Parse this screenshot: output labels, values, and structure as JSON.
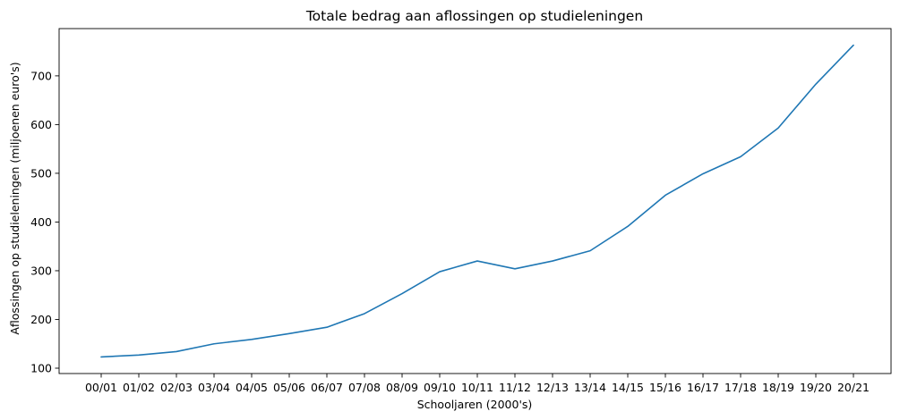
{
  "chart_data": {
    "type": "line",
    "title": "Totale bedrag aan aflossingen op studieleningen",
    "xlabel": "Schooljaren (2000's)",
    "ylabel": "Aflossingen op studieleningen (miljoenen euro's)",
    "categories": [
      "00/01",
      "01/02",
      "02/03",
      "03/04",
      "04/05",
      "05/06",
      "06/07",
      "07/08",
      "08/09",
      "09/10",
      "10/11",
      "11/12",
      "12/13",
      "13/14",
      "14/15",
      "15/16",
      "16/17",
      "17/18",
      "18/19",
      "19/20",
      "20/21"
    ],
    "series": [
      {
        "color": "#1f77b4",
        "values": [
          123,
          127,
          134,
          150,
          159,
          171,
          184,
          212,
          253,
          298,
          320,
          304,
          320,
          341,
          391,
          455,
          499,
          534,
          593,
          683,
          763
        ]
      }
    ],
    "yticks": [
      100,
      200,
      300,
      400,
      500,
      600,
      700
    ],
    "ylim": [
      89,
      797
    ],
    "grid": false,
    "legend": "none"
  }
}
